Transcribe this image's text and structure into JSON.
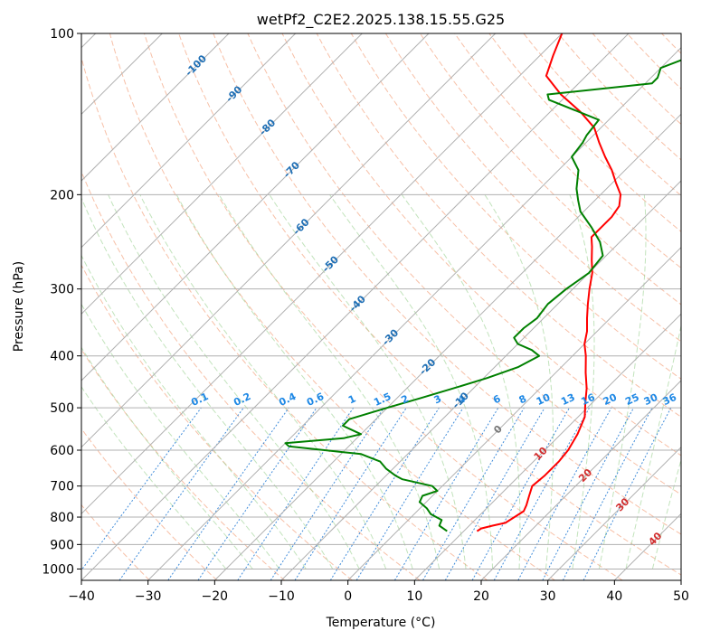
{
  "chart_data": {
    "type": "line",
    "subtype": "skew-t log-p diagram",
    "title": "wetPf2_C2E2.2025.138.15.55.G25",
    "xlabel": "Temperature (°C)",
    "ylabel": "Pressure (hPa)",
    "xlim": [
      -40,
      50
    ],
    "ylim": [
      1050,
      100
    ],
    "y_scale": "log",
    "grid": true,
    "x_ticks": [
      -40,
      -30,
      -20,
      -10,
      0,
      10,
      20,
      30,
      40,
      50
    ],
    "x_tick_labels": [
      "−40",
      "−30",
      "−20",
      "−10",
      "0",
      "10",
      "20",
      "30",
      "40",
      "50"
    ],
    "y_ticks": [
      100,
      200,
      300,
      400,
      500,
      600,
      700,
      800,
      900,
      1000
    ],
    "y_tick_labels": [
      "100",
      "200",
      "300",
      "400",
      "500",
      "600",
      "700",
      "800",
      "900",
      "1000"
    ],
    "colors": {
      "temperature": "#ff0000",
      "dewpoint": "#008000",
      "isotherm": "#b0b0b0",
      "dry_adiabat": "#f4a582",
      "moist_adiabat": "#99d08f",
      "mixing_ratio": "#1f78d4",
      "mixing_ratio_label": "#1e88e5",
      "isotherm_label": "#1f6fb5",
      "temp_label": "#d32f2f",
      "zero_label": "#777777"
    },
    "series": [
      {
        "name": "Temperature",
        "points": [
          [
            12.0,
            850
          ],
          [
            12.2,
            840
          ],
          [
            13.5,
            830
          ],
          [
            15.0,
            820
          ],
          [
            15.5,
            800
          ],
          [
            16.0,
            780
          ],
          [
            15.5,
            760
          ],
          [
            14.5,
            730
          ],
          [
            13.5,
            700
          ],
          [
            13.8,
            670
          ],
          [
            13.8,
            630
          ],
          [
            13.5,
            600
          ],
          [
            12.5,
            560
          ],
          [
            11.0,
            520
          ],
          [
            9.0,
            490
          ],
          [
            7.0,
            460
          ],
          [
            4.5,
            430
          ],
          [
            2.0,
            400
          ],
          [
            0.0,
            380
          ],
          [
            -1.5,
            360
          ],
          [
            -3.5,
            340
          ],
          [
            -5.5,
            320
          ],
          [
            -7.5,
            300
          ],
          [
            -9.5,
            280
          ],
          [
            -11.5,
            265
          ],
          [
            -13.5,
            250
          ],
          [
            -15.0,
            240
          ],
          [
            -15.0,
            230
          ],
          [
            -15.0,
            220
          ],
          [
            -15.5,
            210
          ],
          [
            -17.0,
            200
          ],
          [
            -19.5,
            190
          ],
          [
            -22.0,
            180
          ],
          [
            -25.0,
            170
          ],
          [
            -28.0,
            160
          ],
          [
            -31.0,
            150
          ],
          [
            -35.5,
            140
          ],
          [
            -41.0,
            130
          ],
          [
            -46.0,
            120
          ],
          [
            -48.0,
            110
          ],
          [
            -50.0,
            100
          ]
        ]
      },
      {
        "name": "Dewpoint",
        "points": [
          [
            7.5,
            850
          ],
          [
            5.5,
            830
          ],
          [
            5.0,
            810
          ],
          [
            2.5,
            790
          ],
          [
            1.0,
            770
          ],
          [
            -1.0,
            750
          ],
          [
            -1.5,
            730
          ],
          [
            0.0,
            715
          ],
          [
            -1.5,
            700
          ],
          [
            -7.0,
            680
          ],
          [
            -8.5,
            670
          ],
          [
            -11.0,
            650
          ],
          [
            -13.0,
            630
          ],
          [
            -17.0,
            610
          ],
          [
            -29.0,
            590
          ],
          [
            -30.0,
            582
          ],
          [
            -22.0,
            570
          ],
          [
            -20.0,
            560
          ],
          [
            -24.0,
            540
          ],
          [
            -24.0,
            525
          ],
          [
            -20.0,
            500
          ],
          [
            -16.5,
            480
          ],
          [
            -13.0,
            460
          ],
          [
            -9.5,
            440
          ],
          [
            -6.5,
            420
          ],
          [
            -5.0,
            400
          ],
          [
            -7.0,
            390
          ],
          [
            -10.0,
            380
          ],
          [
            -11.5,
            370
          ],
          [
            -11.5,
            355
          ],
          [
            -11.0,
            340
          ],
          [
            -11.5,
            320
          ],
          [
            -11.0,
            300
          ],
          [
            -10.0,
            280
          ],
          [
            -10.5,
            260
          ],
          [
            -13.0,
            245
          ],
          [
            -16.5,
            230
          ],
          [
            -20.5,
            215
          ],
          [
            -22.5,
            205
          ],
          [
            -24.5,
            195
          ],
          [
            -27.0,
            180
          ],
          [
            -30.0,
            170
          ],
          [
            -30.5,
            160
          ],
          [
            -31.0,
            155
          ],
          [
            -31.5,
            145
          ],
          [
            -42.0,
            133
          ],
          [
            -43.0,
            130
          ],
          [
            -29.0,
            124
          ],
          [
            -29.0,
            121
          ],
          [
            -30.0,
            116
          ],
          [
            -27.0,
            110
          ],
          [
            -24.0,
            106
          ],
          [
            -22.0,
            100
          ]
        ]
      }
    ],
    "mixing_ratio_labels": [
      "0.1",
      "0.2",
      "0.4",
      "0.6",
      "1",
      "1.5",
      "2",
      "3",
      "4",
      "6",
      "8",
      "10",
      "13",
      "16",
      "20",
      "25",
      "30",
      "36"
    ],
    "isotherm_labels": [
      "-100",
      "-90",
      "-80",
      "-70",
      "-60",
      "-50",
      "-40",
      "-30",
      "-20",
      "-10"
    ],
    "moist_adiabat_labels": [
      "0",
      "10",
      "20",
      "30",
      "40"
    ]
  }
}
